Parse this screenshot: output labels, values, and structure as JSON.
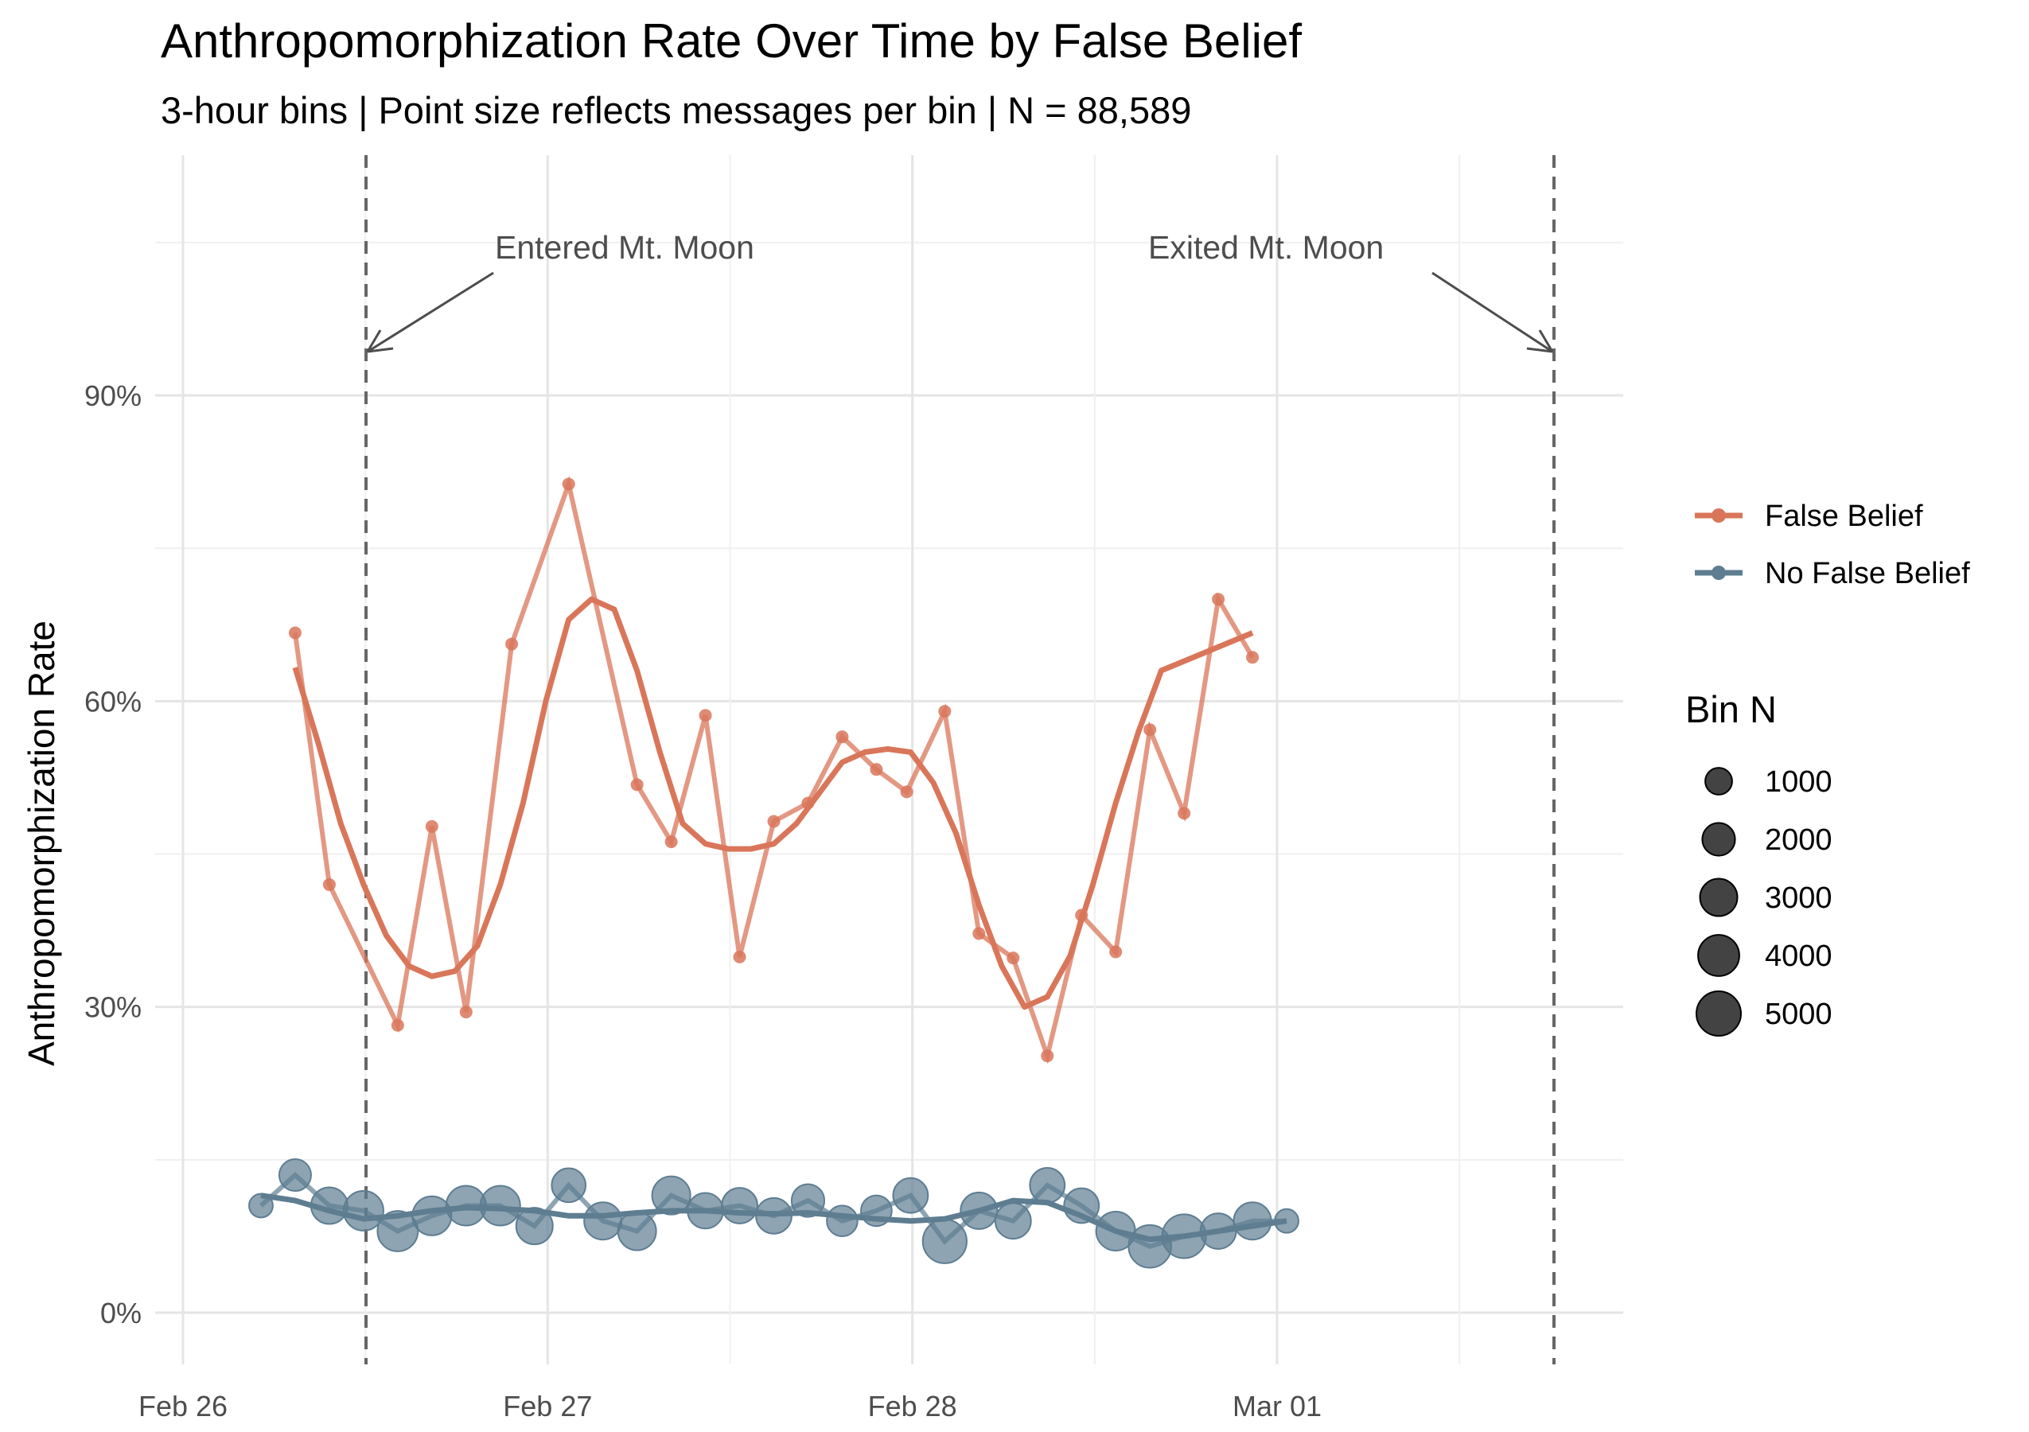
{
  "chart_data": {
    "type": "line",
    "title": "Anthropomorphization Rate Over Time by False Belief",
    "subtitle": "3-hour bins | Point size reflects messages per bin | N = 88,589",
    "xlabel": "",
    "ylabel": "Anthropomorphization Rate",
    "x_ticks": [
      "Feb 26",
      "Feb 27",
      "Feb 28",
      "Mar 01"
    ],
    "y_ticks": [
      "0%",
      "30%",
      "60%",
      "90%"
    ],
    "xlim_hours": [
      -6,
      66
    ],
    "ylim": [
      -0.05,
      1.1
    ],
    "grid": true,
    "legend_position": "right",
    "colors": {
      "False Belief": "#D9765A",
      "No False Belief": "#5E7D91"
    },
    "annotations": [
      {
        "text": "Entered Mt. Moon",
        "x": 9,
        "y_line": 0.94
      },
      {
        "text": "Exited Mt. Moon",
        "x": 69.75,
        "y_line": 0.94
      }
    ],
    "vlines_x": [
      9,
      69.75
    ],
    "series": [
      {
        "name": "False Belief",
        "x": [
          4.5,
          6.75,
          11.25,
          13.5,
          15.75,
          18.75,
          22.5,
          27,
          29.25,
          31.5,
          33.75,
          36,
          38.25,
          40.5,
          42.75,
          44.75,
          47.25,
          49.5,
          51.75,
          54,
          56.25,
          58.5,
          60.75,
          63,
          65.25,
          67.5
        ],
        "values": [
          0.667,
          0.42,
          0.282,
          0.477,
          0.295,
          0.656,
          0.813,
          0.518,
          0.462,
          0.586,
          0.349,
          0.482,
          0.5,
          0.565,
          0.533,
          0.511,
          0.59,
          0.372,
          0.348,
          0.252,
          0.39,
          0.354,
          0.572,
          0.49,
          0.7,
          0.643
        ],
        "smooth": [
          0.633,
          0.56,
          0.48,
          0.42,
          0.37,
          0.34,
          0.33,
          0.335,
          0.36,
          0.42,
          0.5,
          0.6,
          0.68,
          0.7,
          0.69,
          0.63,
          0.55,
          0.48,
          0.46,
          0.455,
          0.455,
          0.46,
          0.48,
          0.51,
          0.54,
          0.55,
          0.553,
          0.55,
          0.52,
          0.47,
          0.4,
          0.34,
          0.3,
          0.31,
          0.35,
          0.42,
          0.5,
          0.57,
          0.63,
          0.667
        ],
        "smooth_x": [
          4.5,
          6,
          7.5,
          9,
          10.5,
          12,
          13.5,
          15,
          16.5,
          18,
          19.5,
          21,
          22.5,
          24,
          25.5,
          27,
          28.5,
          30,
          31.5,
          33,
          34.5,
          36,
          37.5,
          39,
          40.5,
          42,
          43.5,
          45,
          46.5,
          48,
          49.5,
          51,
          52.5,
          54,
          55.5,
          57,
          58.5,
          60,
          61.5,
          67.5
        ]
      },
      {
        "name": "No False Belief",
        "x": [
          2.25,
          4.5,
          6.75,
          9,
          11.25,
          13.5,
          15.75,
          18,
          20.25,
          22.5,
          24.75,
          27,
          29.25,
          31.5,
          33.75,
          36,
          38.25,
          40.5,
          42.75,
          45,
          47.25,
          49.5,
          51.75,
          54,
          56.25,
          58.5,
          60.75,
          63,
          65.25,
          67.5,
          69.75
        ],
        "values": [
          0.105,
          0.135,
          0.105,
          0.1,
          0.08,
          0.095,
          0.105,
          0.105,
          0.085,
          0.125,
          0.09,
          0.08,
          0.115,
          0.1,
          0.105,
          0.095,
          0.11,
          0.09,
          0.1,
          0.115,
          0.07,
          0.1,
          0.09,
          0.125,
          0.105,
          0.08,
          0.065,
          0.075,
          0.08,
          0.09,
          0.09
        ],
        "bin_n": [
          600,
          1800,
          2800,
          3600,
          3800,
          3400,
          3600,
          3600,
          2800,
          2200,
          3000,
          3200,
          3200,
          2600,
          2600,
          2600,
          2000,
          1600,
          1600,
          2400,
          4800,
          2800,
          2600,
          2400,
          2400,
          3400,
          4400,
          4800,
          2600,
          3000,
          600
        ],
        "smooth": [
          0.115,
          0.11,
          0.1,
          0.092,
          0.095,
          0.1,
          0.103,
          0.102,
          0.1,
          0.095,
          0.095,
          0.098,
          0.1,
          0.1,
          0.098,
          0.097,
          0.098,
          0.095,
          0.092,
          0.09,
          0.092,
          0.1,
          0.11,
          0.108,
          0.095,
          0.08,
          0.072,
          0.075,
          0.08,
          0.09
        ],
        "smooth_x": [
          2.25,
          4.5,
          6.75,
          9,
          11.25,
          13.5,
          15.75,
          18,
          20.25,
          22.5,
          24.75,
          27,
          29.25,
          31.5,
          33.75,
          36,
          38.25,
          40.5,
          42.75,
          45,
          47.25,
          49.5,
          51.75,
          54,
          56.25,
          58.5,
          60.75,
          63,
          65.25,
          69.75
        ]
      }
    ],
    "size_legend": {
      "title": "Bin N",
      "values": [
        1000,
        2000,
        3000,
        4000,
        5000
      ]
    }
  }
}
